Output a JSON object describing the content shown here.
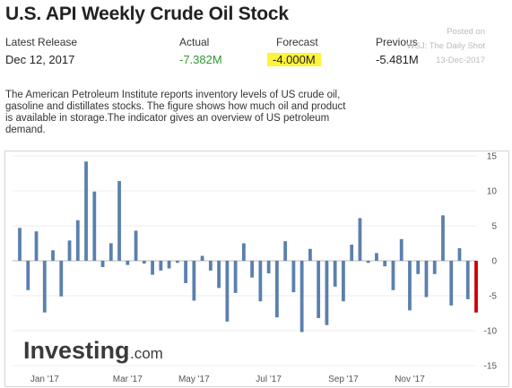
{
  "header": {
    "title": "U.S. API Weekly Crude Oil Stock"
  },
  "stats": {
    "release_label": "Latest Release",
    "release_value": "Dec 12, 2017",
    "actual_label": "Actual",
    "actual_value": "-7.382M",
    "forecast_label": "Forecast",
    "forecast_value": "-4.000M",
    "previous_label": "Previous",
    "previous_value": "-5.481M"
  },
  "posted": {
    "line1": "Posted on",
    "line2": "WSJ: The Daily Shot",
    "line3": "13-Dec-2017"
  },
  "description": "The American Petroleum Institute reports inventory levels of US crude oil, gasoline and distillates stocks. The figure shows how much oil and product is available in storage.The indicator gives an overview of US petroleum demand.",
  "logo": {
    "main": "Investing",
    "suffix": ".com"
  },
  "colors": {
    "bar": "#5b80ad",
    "latest_bar": "#cc0000",
    "actual": "#2f9a2f",
    "highlight": "#fff33a"
  },
  "chart_data": {
    "type": "bar",
    "title": "U.S. API Weekly Crude Oil Stock",
    "y_ticks": [
      15,
      10,
      5,
      0,
      -5,
      -10,
      -15
    ],
    "x_tick_labels": [
      "Jan '17",
      "Mar '17",
      "May '17",
      "Jul '17",
      "Sep '17",
      "Nov '17"
    ],
    "ylim": [
      -15,
      15
    ],
    "grid": true,
    "values": [
      4.7,
      -4.2,
      4.2,
      -7.4,
      1.5,
      -5.1,
      2.9,
      5.8,
      14.2,
      9.9,
      -0.9,
      2.5,
      11.4,
      -0.6,
      4.3,
      -0.4,
      -2.0,
      -1.4,
      -1.1,
      -0.3,
      -3.2,
      -5.7,
      0.7,
      -1.4,
      -3.9,
      -8.7,
      -4.6,
      2.5,
      -2.4,
      -5.8,
      -1.8,
      -8.1,
      2.8,
      -4.5,
      -10.2,
      1.7,
      -8.2,
      -9.2,
      -3.7,
      -5.8,
      2.3,
      6.1,
      -0.3,
      1.1,
      -0.8,
      -4.2,
      3.1,
      -7.1,
      -1.9,
      -5.2,
      -1.9,
      6.5,
      -6.4,
      1.8,
      -5.5,
      -7.4
    ],
    "highlight_last": true,
    "y_axis_position": "right"
  }
}
